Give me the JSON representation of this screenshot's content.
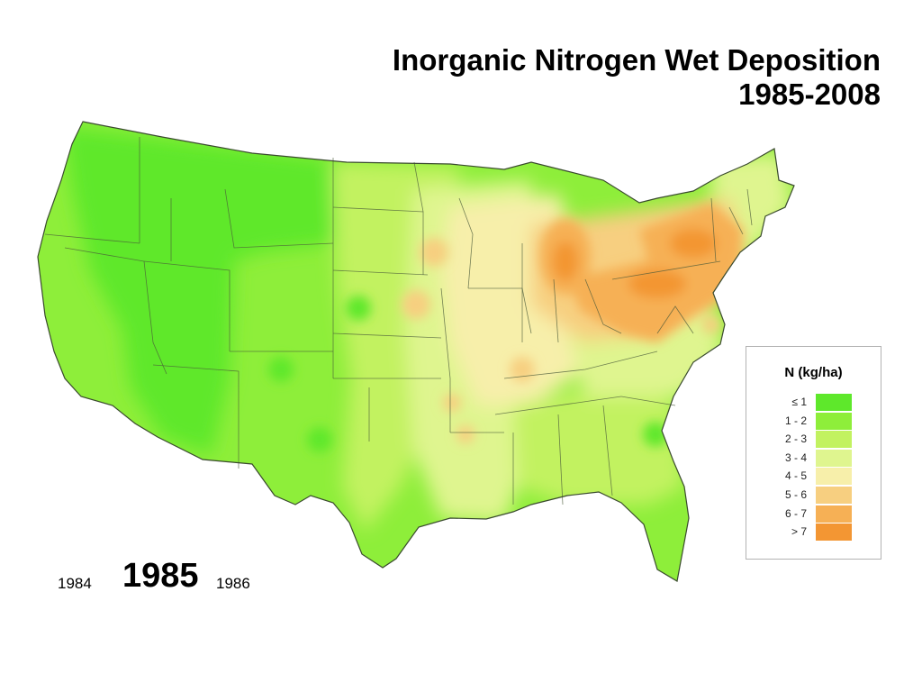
{
  "title": {
    "line1": "Inorganic Nitrogen Wet Deposition",
    "line2": "1985-2008"
  },
  "map": {
    "type": "choropleth",
    "region": "contiguous United States",
    "variable": "inorganic nitrogen wet deposition",
    "unit": "kg/ha",
    "base_class": "1 - 2",
    "regions": [
      {
        "area": "Washington Oregon Idaho Montana Wyoming Nevada Utah Arizona",
        "class": "≤ 1"
      },
      {
        "area": "California Colorado New Mexico Texas",
        "class": "1 - 2"
      },
      {
        "area": "North Dakota South Dakota Nebraska Kansas Oklahoma",
        "class": "2 - 3"
      },
      {
        "area": "Minnesota Iowa Missouri Arkansas Louisiana",
        "class": "3 - 4"
      },
      {
        "area": "Illinois Kentucky Tennessee Southeast Florida",
        "class": "2 - 3"
      },
      {
        "area": "Wisconsin Illinois Indiana",
        "class": "4 - 5"
      },
      {
        "area": "Lower Michigan",
        "class": "6 - 7"
      },
      {
        "area": "Ohio Pennsylvania West Virginia",
        "class": "6 - 7"
      },
      {
        "area": "New York",
        "class": "6 - 7"
      },
      {
        "area": "Lake Ontario shore",
        "class": "> 7"
      },
      {
        "area": "New England",
        "class": "3 - 4"
      }
    ]
  },
  "legend": {
    "title": "N  (kg/ha)",
    "items": [
      {
        "label": "≤ 1",
        "color": "#5ee82b"
      },
      {
        "label": "1 - 2",
        "color": "#8eee3a"
      },
      {
        "label": "2 - 3",
        "color": "#c2f260"
      },
      {
        "label": "3 - 4",
        "color": "#dff58f"
      },
      {
        "label": "4 - 5",
        "color": "#f7efaa"
      },
      {
        "label": "5 - 6",
        "color": "#f7cf80"
      },
      {
        "label": "6 - 7",
        "color": "#f6b055"
      },
      {
        "label": "> 7",
        "color": "#f39633"
      }
    ]
  },
  "years": {
    "previous": "1984",
    "current": "1985",
    "next": "1986"
  }
}
